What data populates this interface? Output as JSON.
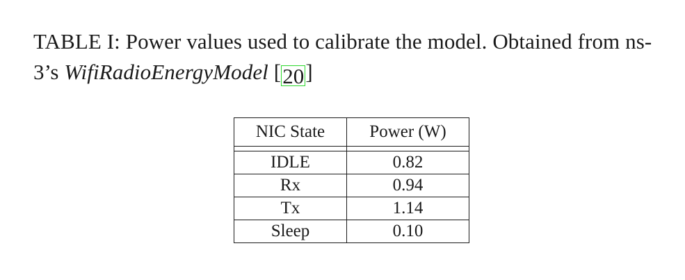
{
  "caption": {
    "part1": "TABLE I: Power values used to calibrate the model. Obtained from ns-3’s ",
    "italic": "WifiRadioEnergyModel",
    "part2_open": " [",
    "citation": "20",
    "part2_close": "]"
  },
  "table": {
    "headers": [
      "NIC State",
      "Power (W)"
    ],
    "rows": [
      [
        "IDLE",
        "0.82"
      ],
      [
        "Rx",
        "0.94"
      ],
      [
        "Tx",
        "1.14"
      ],
      [
        "Sleep",
        "0.10"
      ]
    ]
  },
  "colors": {
    "citation_box": "#2bd82b",
    "text": "#1a1a1a"
  }
}
